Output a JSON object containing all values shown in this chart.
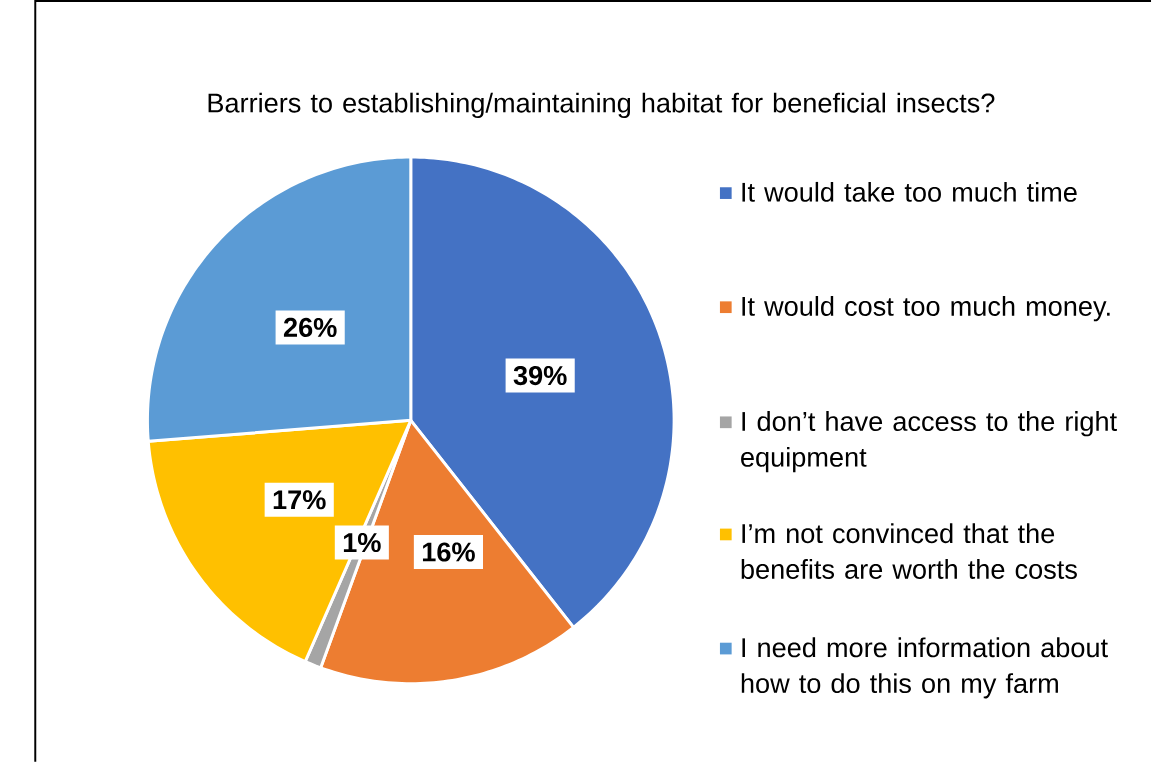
{
  "chart_data": {
    "type": "pie",
    "title": "Barriers to establishing/maintaining habitat for beneficial insects?",
    "categories": [
      "It would take too much time",
      "It would cost too much money.",
      "I don’t have access to the right equipment",
      "I’m not convinced that the benefits are worth the costs",
      "I need more information about how to do this on my farm"
    ],
    "values": [
      39,
      16,
      1,
      17,
      26
    ],
    "colors": [
      "#4472c4",
      "#ed7d31",
      "#a5a5a5",
      "#ffc000",
      "#5b9bd5"
    ],
    "value_labels": [
      "39%",
      "16%",
      "1%",
      "17%",
      "26%"
    ],
    "legend": "right"
  }
}
